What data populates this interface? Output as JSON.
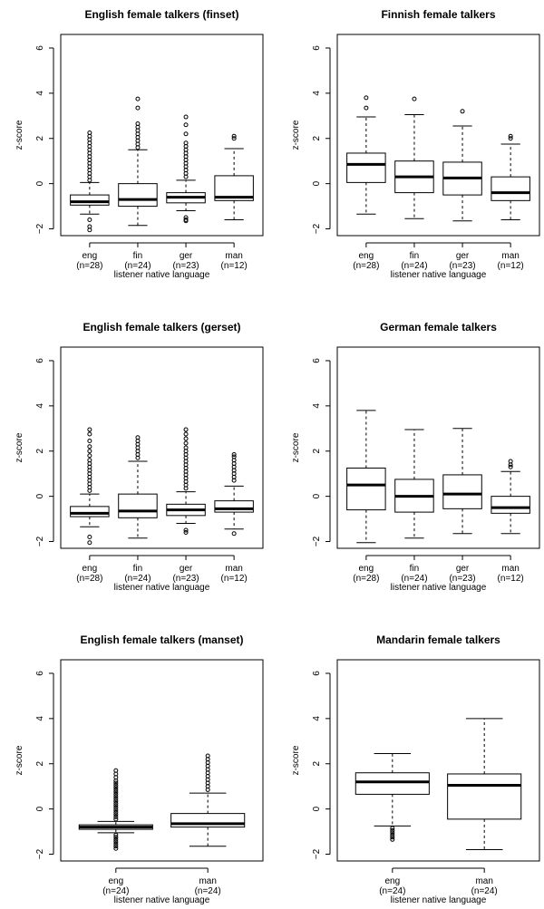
{
  "chart_data": [
    {
      "type": "boxplot",
      "title": "English female talkers (finset)",
      "ylabel": "z-score",
      "xlabel": "listener native language",
      "ylim": [
        -2.3,
        6.6
      ],
      "yticks": [
        -2,
        0,
        2,
        4,
        6
      ],
      "groups": [
        {
          "label": "eng",
          "n": "(n=28)",
          "q1": -0.95,
          "median": -0.8,
          "q3": -0.5,
          "whisker_low": -1.35,
          "whisker_high": 0.05,
          "outliers_low": [
            -1.6,
            -1.9,
            -2.05
          ],
          "outliers_high": [
            0.15,
            0.3,
            0.45,
            0.6,
            0.75,
            0.9,
            1.05,
            1.2,
            1.35,
            1.5,
            1.65,
            1.8,
            1.95,
            2.1,
            2.25
          ]
        },
        {
          "label": "fin",
          "n": "(n=24)",
          "q1": -1.0,
          "median": -0.7,
          "q3": 0.0,
          "whisker_low": -1.85,
          "whisker_high": 1.5,
          "outliers_low": [],
          "outliers_high": [
            1.6,
            1.75,
            1.9,
            2.05,
            2.2,
            2.35,
            2.5,
            2.65,
            3.35,
            3.75
          ]
        },
        {
          "label": "ger",
          "n": "(n=23)",
          "q1": -0.85,
          "median": -0.6,
          "q3": -0.4,
          "whisker_low": -1.2,
          "whisker_high": 0.15,
          "outliers_low": [
            -1.5,
            -1.6,
            -1.65
          ],
          "outliers_high": [
            0.3,
            0.45,
            0.6,
            0.75,
            0.9,
            1.05,
            1.2,
            1.35,
            1.5,
            1.65,
            1.8,
            2.2,
            2.6,
            2.95
          ]
        },
        {
          "label": "man",
          "n": "(n=12)",
          "q1": -0.75,
          "median": -0.6,
          "q3": 0.35,
          "whisker_low": -1.6,
          "whisker_high": 1.55,
          "outliers_low": [],
          "outliers_high": [
            2.0,
            2.1
          ]
        }
      ]
    },
    {
      "type": "boxplot",
      "title": "Finnish female talkers",
      "ylabel": "z-score",
      "xlabel": "listener native language",
      "ylim": [
        -2.3,
        6.6
      ],
      "yticks": [
        -2,
        0,
        2,
        4,
        6
      ],
      "groups": [
        {
          "label": "eng",
          "n": "(n=28)",
          "q1": 0.05,
          "median": 0.85,
          "q3": 1.35,
          "whisker_low": -1.35,
          "whisker_high": 2.95,
          "outliers_low": [],
          "outliers_high": [
            3.35,
            3.8
          ]
        },
        {
          "label": "fin",
          "n": "(n=24)",
          "q1": -0.4,
          "median": 0.3,
          "q3": 1.0,
          "whisker_low": -1.55,
          "whisker_high": 3.05,
          "outliers_low": [],
          "outliers_high": [
            3.75
          ]
        },
        {
          "label": "ger",
          "n": "(n=23)",
          "q1": -0.5,
          "median": 0.25,
          "q3": 0.95,
          "whisker_low": -1.65,
          "whisker_high": 2.55,
          "outliers_low": [],
          "outliers_high": [
            3.2
          ]
        },
        {
          "label": "man",
          "n": "(n=12)",
          "q1": -0.75,
          "median": -0.4,
          "q3": 0.3,
          "whisker_low": -1.6,
          "whisker_high": 1.75,
          "outliers_low": [],
          "outliers_high": [
            2.0,
            2.1
          ]
        }
      ]
    },
    {
      "type": "boxplot",
      "title": "English female talkers (gerset)",
      "ylabel": "z-score",
      "xlabel": "listener native language",
      "ylim": [
        -2.3,
        6.6
      ],
      "yticks": [
        -2,
        0,
        2,
        4,
        6
      ],
      "groups": [
        {
          "label": "eng",
          "n": "(n=28)",
          "q1": -0.9,
          "median": -0.75,
          "q3": -0.45,
          "whisker_low": -1.35,
          "whisker_high": 0.1,
          "outliers_low": [
            -1.8,
            -2.05
          ],
          "outliers_high": [
            0.25,
            0.4,
            0.55,
            0.7,
            0.85,
            1.0,
            1.15,
            1.3,
            1.45,
            1.6,
            1.8,
            2.0,
            2.2,
            2.45,
            2.75,
            2.95
          ]
        },
        {
          "label": "fin",
          "n": "(n=24)",
          "q1": -0.95,
          "median": -0.65,
          "q3": 0.1,
          "whisker_low": -1.85,
          "whisker_high": 1.55,
          "outliers_low": [],
          "outliers_high": [
            1.7,
            1.85,
            2.0,
            2.15,
            2.3,
            2.45,
            2.6
          ]
        },
        {
          "label": "ger",
          "n": "(n=23)",
          "q1": -0.85,
          "median": -0.6,
          "q3": -0.35,
          "whisker_low": -1.2,
          "whisker_high": 0.2,
          "outliers_low": [
            -1.5,
            -1.6
          ],
          "outliers_high": [
            0.35,
            0.5,
            0.65,
            0.8,
            0.95,
            1.1,
            1.25,
            1.4,
            1.55,
            1.7,
            1.85,
            2.0,
            2.15,
            2.35,
            2.55,
            2.75,
            2.95
          ]
        },
        {
          "label": "man",
          "n": "(n=12)",
          "q1": -0.7,
          "median": -0.55,
          "q3": -0.2,
          "whisker_low": -1.45,
          "whisker_high": 0.45,
          "outliers_low": [
            -1.65
          ],
          "outliers_high": [
            0.7,
            0.85,
            1.0,
            1.15,
            1.3,
            1.45,
            1.6,
            1.75,
            1.85
          ]
        }
      ]
    },
    {
      "type": "boxplot",
      "title": "German female talkers",
      "ylabel": "z-score",
      "xlabel": "listener native language",
      "ylim": [
        -2.3,
        6.6
      ],
      "yticks": [
        -2,
        0,
        2,
        4,
        6
      ],
      "groups": [
        {
          "label": "eng",
          "n": "(n=28)",
          "q1": -0.6,
          "median": 0.5,
          "q3": 1.25,
          "whisker_low": -2.05,
          "whisker_high": 3.8,
          "outliers_low": [],
          "outliers_high": []
        },
        {
          "label": "fin",
          "n": "(n=24)",
          "q1": -0.7,
          "median": 0.0,
          "q3": 0.75,
          "whisker_low": -1.85,
          "whisker_high": 2.95,
          "outliers_low": [],
          "outliers_high": []
        },
        {
          "label": "ger",
          "n": "(n=23)",
          "q1": -0.55,
          "median": 0.1,
          "q3": 0.95,
          "whisker_low": -1.65,
          "whisker_high": 3.0,
          "outliers_low": [],
          "outliers_high": []
        },
        {
          "label": "man",
          "n": "(n=12)",
          "q1": -0.75,
          "median": -0.5,
          "q3": 0.0,
          "whisker_low": -1.65,
          "whisker_high": 1.1,
          "outliers_low": [],
          "outliers_high": [
            1.3,
            1.4,
            1.55
          ]
        }
      ]
    },
    {
      "type": "boxplot",
      "title": "English female talkers (manset)",
      "ylabel": "z-score",
      "xlabel": "listener native language",
      "ylim": [
        -2.3,
        6.6
      ],
      "yticks": [
        -2,
        0,
        2,
        4,
        6
      ],
      "groups": [
        {
          "label": "eng",
          "n": "(n=24)",
          "q1": -0.9,
          "median": -0.8,
          "q3": -0.7,
          "whisker_low": -1.05,
          "whisker_high": -0.55,
          "outliers_low": [
            -1.15,
            -1.25,
            -1.35,
            -1.45,
            -1.55,
            -1.65,
            -1.75
          ],
          "outliers_high": [
            -0.45,
            -0.35,
            -0.25,
            -0.15,
            -0.05,
            0.05,
            0.15,
            0.25,
            0.35,
            0.45,
            0.55,
            0.65,
            0.75,
            0.85,
            0.95,
            1.05,
            1.15,
            1.25,
            1.4,
            1.55,
            1.7
          ]
        },
        {
          "label": "man",
          "n": "(n=24)",
          "q1": -0.8,
          "median": -0.65,
          "q3": -0.2,
          "whisker_low": -1.65,
          "whisker_high": 0.7,
          "outliers_low": [],
          "outliers_high": [
            0.85,
            1.0,
            1.15,
            1.3,
            1.45,
            1.6,
            1.75,
            1.9,
            2.05,
            2.2,
            2.35
          ]
        }
      ]
    },
    {
      "type": "boxplot",
      "title": "Mandarin female talkers",
      "ylabel": "z-score",
      "xlabel": "listener native language",
      "ylim": [
        -2.3,
        6.6
      ],
      "yticks": [
        -2,
        0,
        2,
        4,
        6
      ],
      "groups": [
        {
          "label": "eng",
          "n": "(n=24)",
          "q1": 0.65,
          "median": 1.2,
          "q3": 1.6,
          "whisker_low": -0.75,
          "whisker_high": 2.45,
          "outliers_low": [
            -0.85,
            -0.95,
            -1.05,
            -1.15,
            -1.25,
            -1.35
          ],
          "outliers_high": []
        },
        {
          "label": "man",
          "n": "(n=24)",
          "q1": -0.45,
          "median": 1.05,
          "q3": 1.55,
          "whisker_low": -1.8,
          "whisker_high": 4.0,
          "outliers_low": [],
          "outliers_high": []
        }
      ]
    }
  ]
}
